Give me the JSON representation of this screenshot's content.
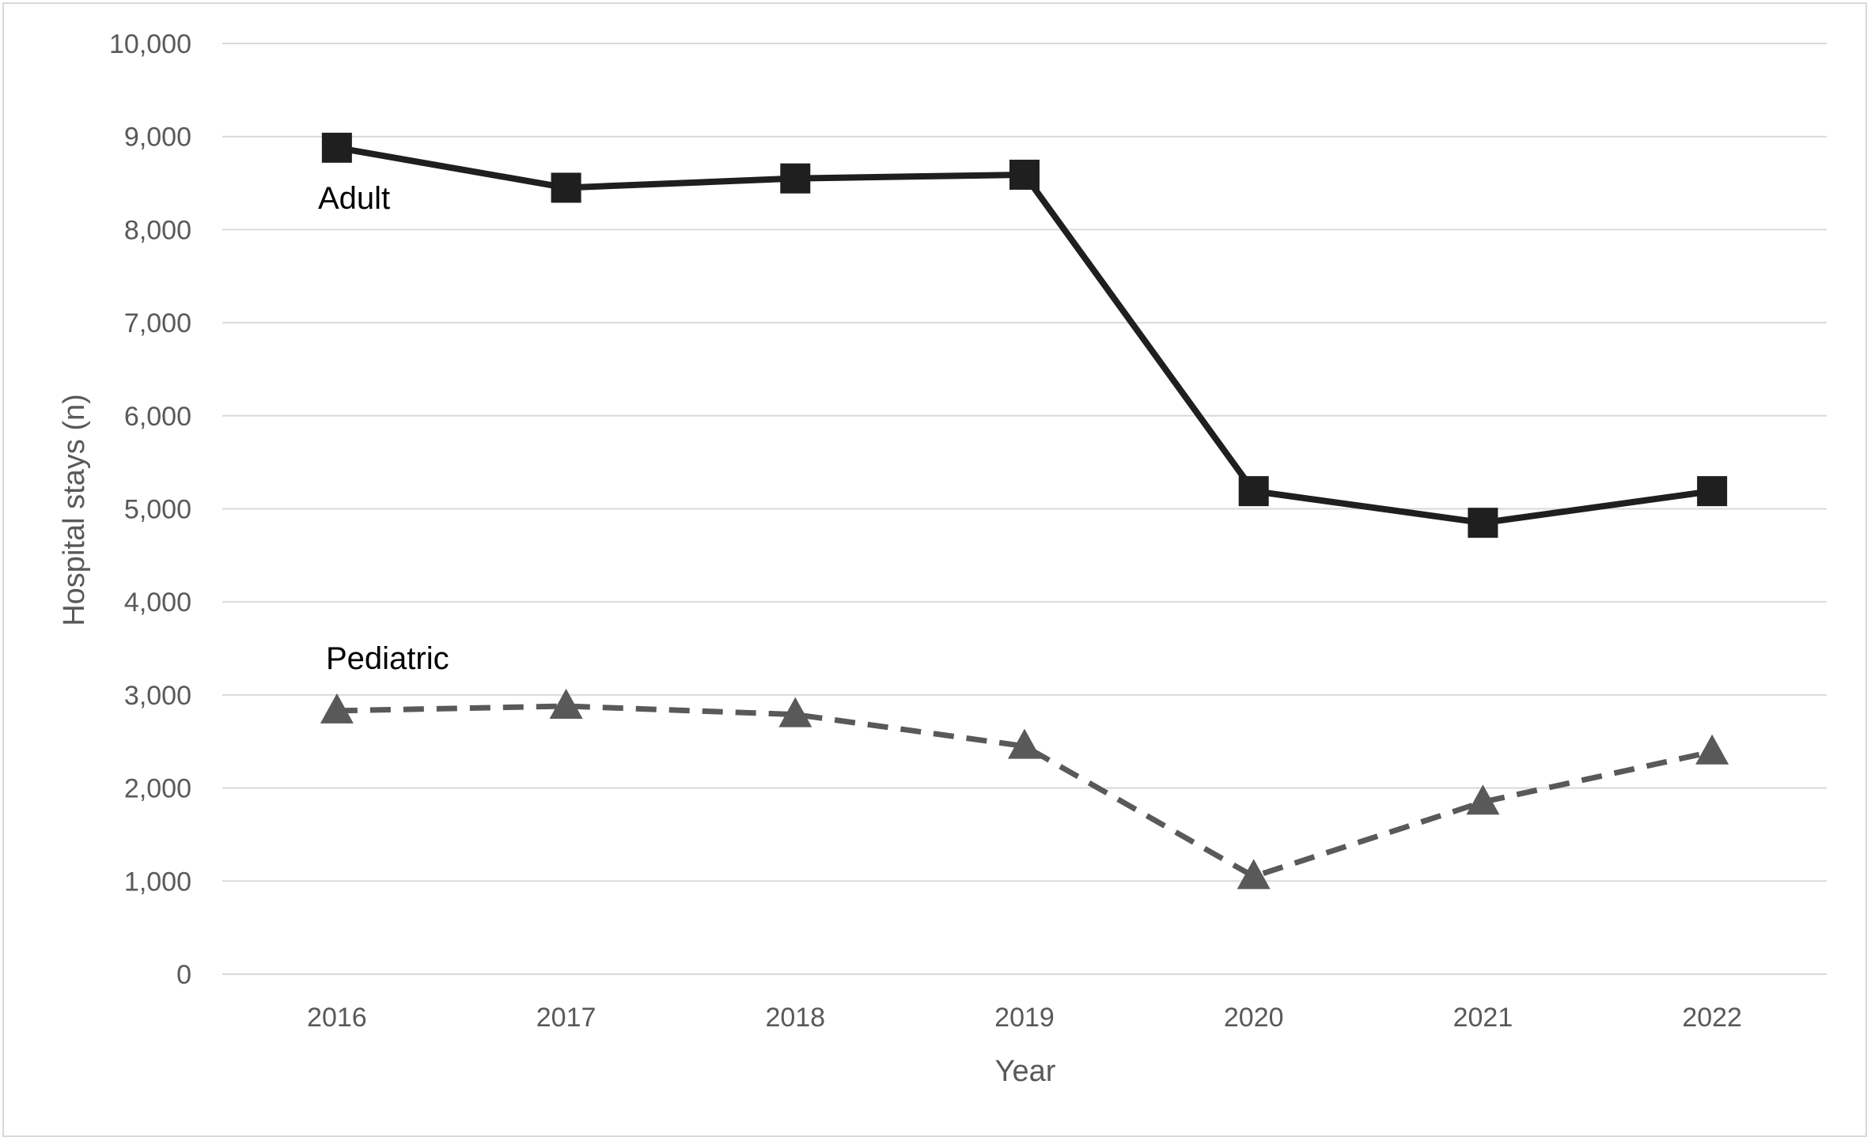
{
  "chart_data": {
    "type": "line",
    "title": "",
    "xlabel": "Year",
    "ylabel": "Hospital stays (n)",
    "categories": [
      "2016",
      "2017",
      "2018",
      "2019",
      "2020",
      "2021",
      "2022"
    ],
    "ylim": [
      0,
      10000
    ],
    "yticks": [
      0,
      1000,
      2000,
      3000,
      4000,
      5000,
      6000,
      7000,
      8000,
      9000,
      10000
    ],
    "ytick_labels": [
      "0",
      "1,000",
      "2,000",
      "3,000",
      "4,000",
      "5,000",
      "6,000",
      "7,000",
      "8,000",
      "9,000",
      "10,000"
    ],
    "grid": "horizontal",
    "legend": "none",
    "series": [
      {
        "name": "Adult",
        "values": [
          8880,
          8450,
          8550,
          8590,
          5190,
          4850,
          5190
        ],
        "marker": "square",
        "line_style": "solid",
        "color": "#1f1f1f"
      },
      {
        "name": "Pediatric",
        "values": [
          2830,
          2880,
          2790,
          2450,
          1050,
          1850,
          2390
        ],
        "marker": "triangle",
        "line_style": "dashed",
        "color": "#595959"
      }
    ],
    "annotations": [
      {
        "text": "Adult",
        "series": "Adult"
      },
      {
        "text": "Pediatric",
        "series": "Pediatric"
      }
    ]
  }
}
